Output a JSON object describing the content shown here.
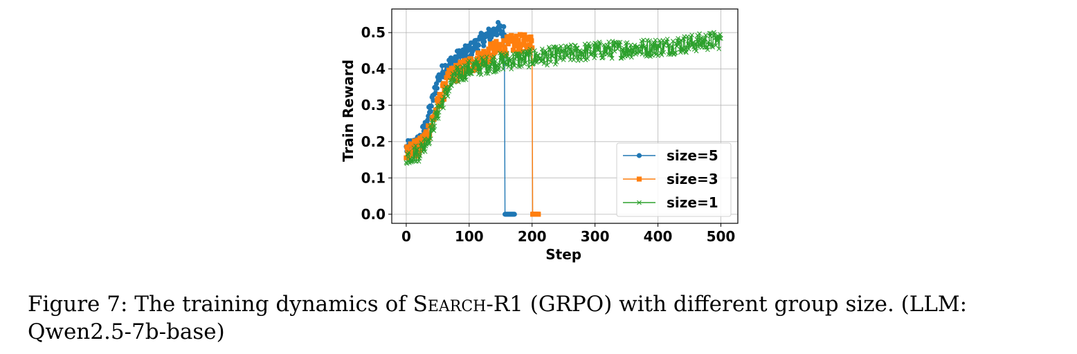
{
  "chart_data": {
    "type": "line",
    "title": "",
    "xlabel": "Step",
    "ylabel": "Train Reward",
    "xlim": [
      -23,
      527
    ],
    "ylim": [
      -0.025,
      0.565
    ],
    "xticks": [
      0,
      100,
      200,
      300,
      400,
      500
    ],
    "xtick_labels": [
      "0",
      "100",
      "200",
      "300",
      "400",
      "500"
    ],
    "yticks": [
      0.0,
      0.1,
      0.2,
      0.3,
      0.4,
      0.5
    ],
    "ytick_labels": [
      "0.0",
      "0.1",
      "0.2",
      "0.3",
      "0.4",
      "0.5"
    ],
    "grid": true,
    "legend_position": "lower-right",
    "series": [
      {
        "name": "size=5",
        "color": "#1f77b4",
        "marker": "circle",
        "x_end": 172,
        "collapse_step": 157,
        "trend": [
          [
            0,
            0.18
          ],
          [
            20,
            0.2
          ],
          [
            30,
            0.24
          ],
          [
            40,
            0.3
          ],
          [
            50,
            0.37
          ],
          [
            60,
            0.4
          ],
          [
            80,
            0.43
          ],
          [
            100,
            0.45
          ],
          [
            120,
            0.48
          ],
          [
            145,
            0.51
          ],
          [
            156,
            0.5
          ]
        ],
        "noise": 0.02
      },
      {
        "name": "size=3",
        "color": "#ff7f0e",
        "marker": "square",
        "x_end": 210,
        "collapse_step": 201,
        "trend": [
          [
            0,
            0.18
          ],
          [
            20,
            0.18
          ],
          [
            30,
            0.21
          ],
          [
            40,
            0.25
          ],
          [
            55,
            0.32
          ],
          [
            70,
            0.38
          ],
          [
            90,
            0.4
          ],
          [
            110,
            0.42
          ],
          [
            140,
            0.45
          ],
          [
            170,
            0.47
          ],
          [
            200,
            0.47
          ]
        ],
        "noise": 0.025
      },
      {
        "name": "size=1",
        "color": "#2ca02c",
        "marker": "x",
        "x_end": 500,
        "collapse_step": null,
        "trend": [
          [
            0,
            0.16
          ],
          [
            20,
            0.17
          ],
          [
            35,
            0.21
          ],
          [
            50,
            0.28
          ],
          [
            65,
            0.34
          ],
          [
            80,
            0.38
          ],
          [
            100,
            0.4
          ],
          [
            150,
            0.42
          ],
          [
            200,
            0.43
          ],
          [
            250,
            0.44
          ],
          [
            300,
            0.45
          ],
          [
            400,
            0.46
          ],
          [
            500,
            0.48
          ]
        ],
        "noise": 0.025
      }
    ],
    "legend": [
      {
        "label": "size=5",
        "color": "#1f77b4",
        "marker": "circle"
      },
      {
        "label": "size=3",
        "color": "#ff7f0e",
        "marker": "square"
      },
      {
        "label": "size=1",
        "color": "#2ca02c",
        "marker": "x"
      }
    ]
  },
  "caption": {
    "prefix": "Figure 7: The training dynamics of ",
    "name_first": "S",
    "name_rest": "earch",
    "suffix": "-R1 (GRPO) with different group size. (LLM: Qwen2.5-7b-base)"
  }
}
